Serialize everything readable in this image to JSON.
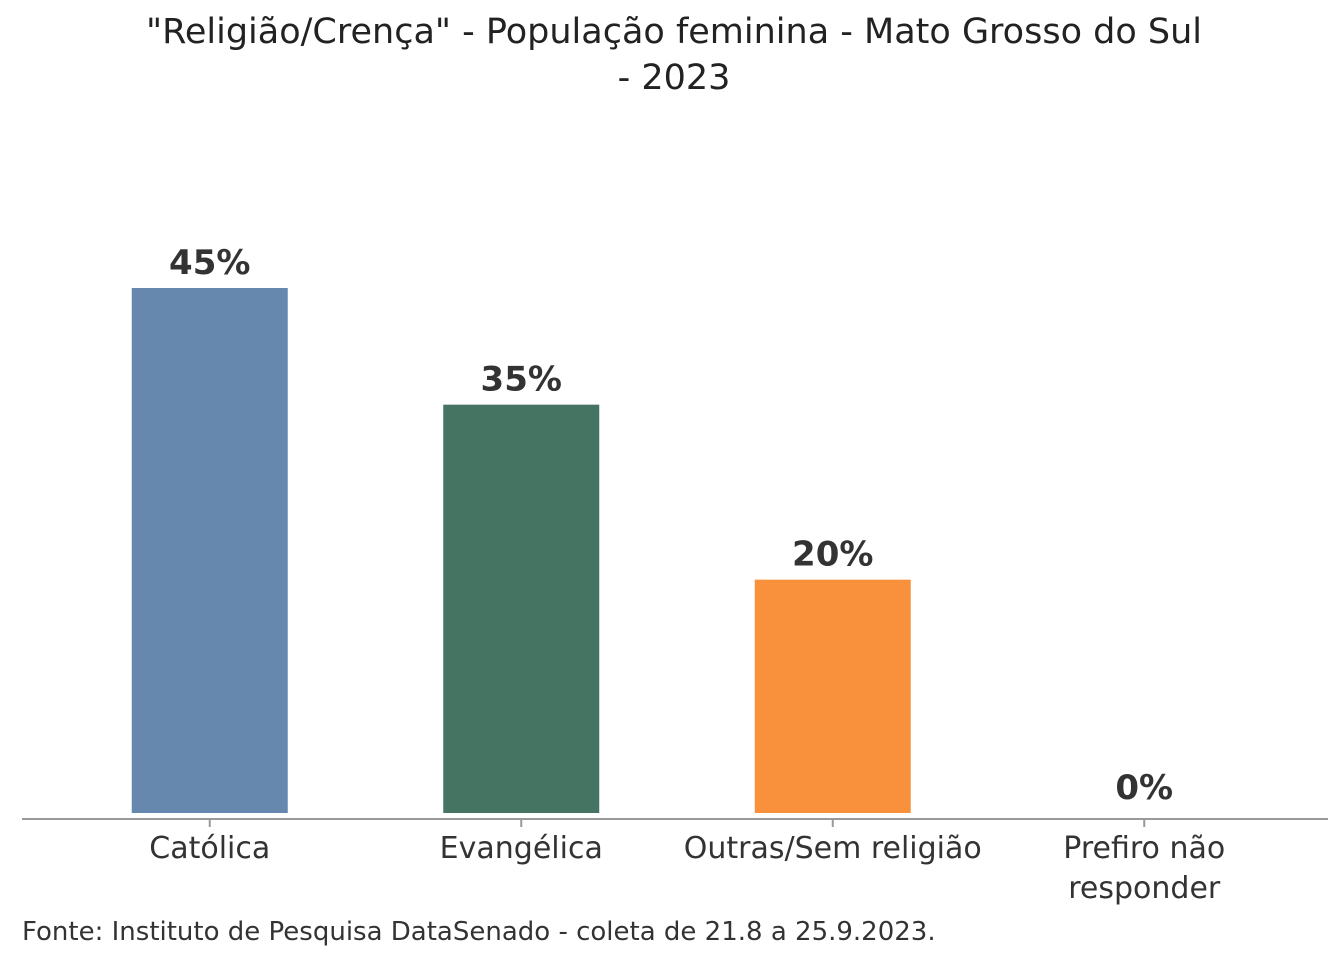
{
  "chart_data": {
    "type": "bar",
    "title_lines": [
      "\"Religião/Crença\" - População feminina - Mato Grosso do Sul",
      "- 2023"
    ],
    "categories": [
      [
        "Católica"
      ],
      [
        "Evangélica"
      ],
      [
        "Outras/Sem religião"
      ],
      [
        "Prefiro não",
        "responder"
      ]
    ],
    "values": [
      45,
      35,
      20,
      0
    ],
    "data_labels": [
      "45%",
      "35%",
      "20%",
      "0%"
    ],
    "colors": [
      "#6688AE",
      "#457562",
      "#F9903C",
      "#B0B0B0"
    ],
    "xlabel": "",
    "ylabel": "",
    "ylim": [
      0,
      45
    ],
    "grid": false,
    "source": "Fonte: Instituto de Pesquisa DataSenado - coleta de 21.8 a 25.9.2023."
  }
}
